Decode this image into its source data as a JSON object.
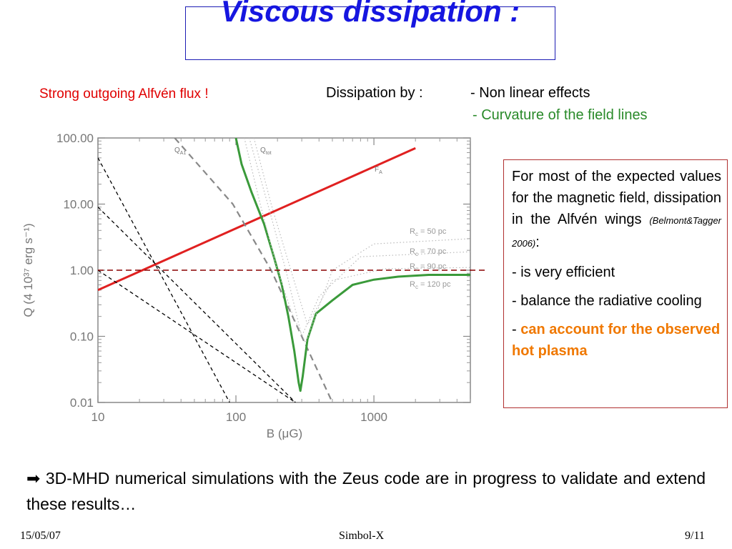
{
  "slide": {
    "title": "Viscous dissipation :",
    "strong_flux": "Strong outgoing Alfvén flux !",
    "dissipation_label": "Dissipation by :",
    "dissipation_items": [
      "- Non linear effects",
      "- Curvature of the field lines"
    ],
    "info": {
      "intro": "For most of the expected values for the magnetic field, dissipation in the Alfvén wings",
      "citation": "(Belmont&Tagger 2006)",
      "intro_end": ":",
      "bullet1": "- is very efficient",
      "bullet2": "- balance the radiative cooling",
      "bullet3_prefix": "- ",
      "bullet3_highlight": "can account for the observed hot plasma"
    },
    "bottom_arrow": "➡",
    "bottom_text": " 3D-MHD numerical simulations with the Zeus code are in progress to validate and extend these results…",
    "footer": {
      "date": "15/05/07",
      "center": "Simbol-X",
      "page": "9/11"
    },
    "colors": {
      "title": "#1616e0",
      "red_text": "#e00000",
      "green_text": "#2a8a2a",
      "orange": "#f07800",
      "box_border": "#b03030"
    }
  },
  "chart_data": {
    "type": "line",
    "xlabel": "B (μG)",
    "ylabel": "Q (4 10³⁷ erg s⁻¹)",
    "xscale": "log",
    "yscale": "log",
    "xlim": [
      10,
      5000
    ],
    "ylim": [
      0.01,
      100
    ],
    "xticks": [
      10,
      100,
      1000
    ],
    "xtick_labels": [
      "10",
      "100",
      "1000"
    ],
    "yticks": [
      0.01,
      0.1,
      1,
      10,
      100
    ],
    "ytick_labels": [
      "0.01",
      "0.10",
      "1.00",
      "10.00",
      "100.00"
    ],
    "annotations": {
      "qa1": "Q",
      "qa1_sub": "A1",
      "qtot": "Q",
      "qtot_sub": "tot",
      "fa": "F",
      "fa_sub": "A",
      "rc": [
        "R",
        "c",
        " = 50 pc",
        " = 70 pc",
        " = 90 pc",
        " = 120 pc"
      ]
    },
    "series": [
      {
        "name": "F_A",
        "color": "#e02020",
        "style": "solid",
        "points": [
          [
            10,
            0.5
          ],
          [
            2000,
            70
          ]
        ]
      },
      {
        "name": "Q_A1",
        "color": "#888888",
        "style": "dashed",
        "points": [
          [
            36,
            100
          ],
          [
            95,
            10
          ],
          [
            180,
            1
          ],
          [
            300,
            0.1
          ],
          [
            500,
            0.01
          ]
        ]
      },
      {
        "name": "Q_tot",
        "color": "#3a9a3a",
        "style": "solid",
        "points": [
          [
            100,
            100
          ],
          [
            110,
            40
          ],
          [
            130,
            15
          ],
          [
            160,
            5
          ],
          [
            190,
            1.5
          ],
          [
            215,
            0.6
          ],
          [
            240,
            0.2
          ],
          [
            265,
            0.06
          ],
          [
            285,
            0.02
          ],
          [
            293,
            0.015
          ],
          [
            305,
            0.025
          ],
          [
            330,
            0.09
          ],
          [
            380,
            0.22
          ],
          [
            500,
            0.35
          ],
          [
            700,
            0.6
          ],
          [
            1000,
            0.72
          ],
          [
            1500,
            0.8
          ],
          [
            2500,
            0.85
          ],
          [
            5000,
            0.85
          ]
        ]
      },
      {
        "name": "Q_tot (Rc curves)",
        "color": "#bbbbbb",
        "style": "dotted",
        "points": [
          [
            115,
            100
          ],
          [
            150,
            10
          ],
          [
            200,
            1
          ],
          [
            260,
            0.2
          ],
          [
            320,
            0.08
          ],
          [
            500,
            1
          ],
          [
            1000,
            2.5
          ],
          [
            5000,
            3
          ]
        ]
      },
      {
        "name": "Q_tot (Rc curves 2)",
        "color": "#bbbbbb",
        "style": "dotted",
        "points": [
          [
            125,
            100
          ],
          [
            170,
            10
          ],
          [
            230,
            1
          ],
          [
            300,
            0.1
          ],
          [
            400,
            0.4
          ],
          [
            800,
            1.6
          ],
          [
            5000,
            1.9
          ]
        ]
      },
      {
        "name": "Q_tot (Rc curves 3)",
        "color": "#bbbbbb",
        "style": "dotted",
        "points": [
          [
            135,
            100
          ],
          [
            180,
            10
          ],
          [
            250,
            1
          ],
          [
            330,
            0.15
          ],
          [
            500,
            0.7
          ],
          [
            1200,
            1.05
          ],
          [
            5000,
            1.1
          ]
        ]
      },
      {
        "name": "black dashed 1",
        "color": "#000000",
        "style": "dashed",
        "points": [
          [
            10,
            50
          ],
          [
            90,
            0.01
          ]
        ]
      },
      {
        "name": "black dashed 2",
        "color": "#000000",
        "style": "dashed",
        "points": [
          [
            10,
            9
          ],
          [
            270,
            0.01
          ]
        ]
      },
      {
        "name": "black dashed 3",
        "color": "#000000",
        "style": "dashed",
        "points": [
          [
            10,
            1
          ],
          [
            270,
            0.01
          ]
        ]
      },
      {
        "name": "reference Q = 1",
        "color": "#8a0000",
        "style": "dashed",
        "points": [
          [
            10,
            1
          ],
          [
            5000,
            1
          ]
        ]
      }
    ]
  }
}
